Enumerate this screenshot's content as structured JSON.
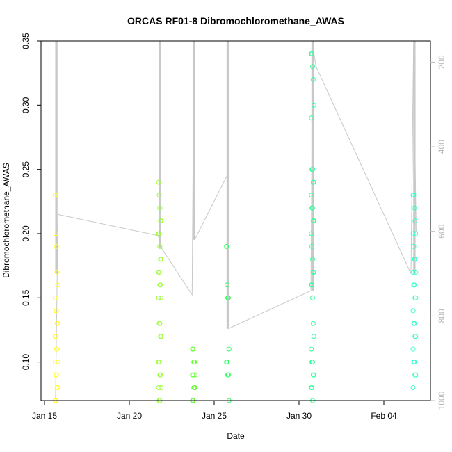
{
  "chart_data": {
    "type": "scatter",
    "title": "ORCAS RF01-8 Dibromochloromethane_AWAS",
    "xlabel": "Date",
    "ylabel": "Dibromochloromethane_AWAS",
    "x_tick_labels": [
      "Jan 15",
      "Jan 20",
      "Jan 25",
      "Jan 30",
      "Feb 04"
    ],
    "x_tick_days": [
      0,
      5,
      10,
      15,
      20
    ],
    "xlim_days": [
      -0.1,
      22.6
    ],
    "ylim": [
      0.07,
      0.35
    ],
    "y_ticks": [
      0.1,
      0.15,
      0.2,
      0.25,
      0.3,
      0.35
    ],
    "y_tick_labels": [
      "0.10",
      "0.15",
      "0.20",
      "0.25",
      "0.30",
      "0.35"
    ],
    "y2_label": "",
    "y2_ticks": [
      200,
      400,
      600,
      800,
      1000
    ],
    "y2_tick_labels": [
      "200",
      "400",
      "600",
      "800",
      "1000"
    ],
    "y2lim": [
      1000,
      150
    ],
    "grid": false,
    "colors": {
      "rf01": "#ffff33",
      "rf02": "#99ff33",
      "rf03": "#66ff33",
      "rf04": "#33ff66",
      "rf05": "#33ff99",
      "rf06": "#33ffcc",
      "pressure_line": "#c8c8c8",
      "axis": "#000000",
      "right_axis": "#b8b8b8"
    },
    "series": [
      {
        "color_key": "rf01",
        "x_days": 0.7,
        "values": [
          0.23,
          0.2,
          0.19,
          0.17,
          0.16,
          0.15,
          0.14,
          0.14,
          0.13,
          0.13,
          0.12,
          0.12,
          0.11,
          0.11,
          0.1,
          0.1,
          0.09,
          0.09,
          0.08,
          0.08,
          0.07,
          0.07
        ]
      },
      {
        "color_key": "rf02",
        "x_days": 6.8,
        "values": [
          0.24,
          0.23,
          0.22,
          0.21,
          0.21,
          0.2,
          0.2,
          0.19,
          0.18,
          0.18,
          0.17,
          0.17,
          0.16,
          0.16,
          0.15,
          0.15,
          0.13,
          0.13,
          0.12,
          0.12,
          0.1,
          0.1,
          0.09,
          0.09,
          0.08,
          0.08,
          0.07,
          0.07
        ]
      },
      {
        "color_key": "rf03",
        "x_days": 8.8,
        "values": [
          0.11,
          0.11,
          0.1,
          0.1,
          0.09,
          0.09,
          0.09,
          0.08,
          0.08,
          0.08,
          0.07,
          0.07
        ]
      },
      {
        "color_key": "rf04",
        "x_days": 10.8,
        "values": [
          0.19,
          0.16,
          0.15,
          0.15,
          0.11,
          0.1,
          0.1,
          0.09,
          0.09,
          0.07
        ]
      },
      {
        "color_key": "rf05",
        "x_days": 15.8,
        "values": [
          0.34,
          0.34,
          0.33,
          0.32,
          0.3,
          0.29,
          0.25,
          0.25,
          0.24,
          0.24,
          0.23,
          0.22,
          0.22,
          0.21,
          0.21,
          0.2,
          0.19,
          0.18,
          0.17,
          0.17,
          0.16,
          0.16,
          0.15,
          0.13,
          0.12,
          0.11,
          0.1,
          0.1,
          0.09,
          0.09,
          0.08,
          0.08,
          0.07
        ]
      },
      {
        "color_key": "rf06",
        "x_days": 21.8,
        "values": [
          0.23,
          0.23,
          0.22,
          0.21,
          0.2,
          0.2,
          0.19,
          0.18,
          0.18,
          0.17,
          0.17,
          0.16,
          0.16,
          0.15,
          0.15,
          0.14,
          0.13,
          0.13,
          0.12,
          0.12,
          0.11,
          0.1,
          0.1,
          0.09,
          0.09,
          0.08
        ]
      }
    ],
    "pressure_trace": {
      "points": [
        [
          0.65,
          995
        ],
        [
          0.75,
          700
        ],
        [
          0.8,
          560
        ],
        [
          6.7,
          610
        ],
        [
          6.9,
          640
        ],
        [
          8.7,
          750
        ],
        [
          8.8,
          160
        ],
        [
          8.85,
          620
        ],
        [
          10.8,
          465
        ],
        [
          10.85,
          830
        ],
        [
          15.7,
          740
        ],
        [
          15.8,
          160
        ],
        [
          16.0,
          210
        ],
        [
          21.6,
          700
        ],
        [
          21.75,
          160
        ],
        [
          21.9,
          600
        ]
      ],
      "profiles": [
        {
          "x_days": 0.7,
          "p_min": 150,
          "p_max": 700
        },
        {
          "x_days": 6.8,
          "p_min": 150,
          "p_max": 640
        },
        {
          "x_days": 8.8,
          "p_min": 150,
          "p_max": 620
        },
        {
          "x_days": 10.8,
          "p_min": 150,
          "p_max": 830
        },
        {
          "x_days": 15.8,
          "p_min": 150,
          "p_max": 740
        },
        {
          "x_days": 21.8,
          "p_min": 150,
          "p_max": 700
        }
      ]
    }
  }
}
